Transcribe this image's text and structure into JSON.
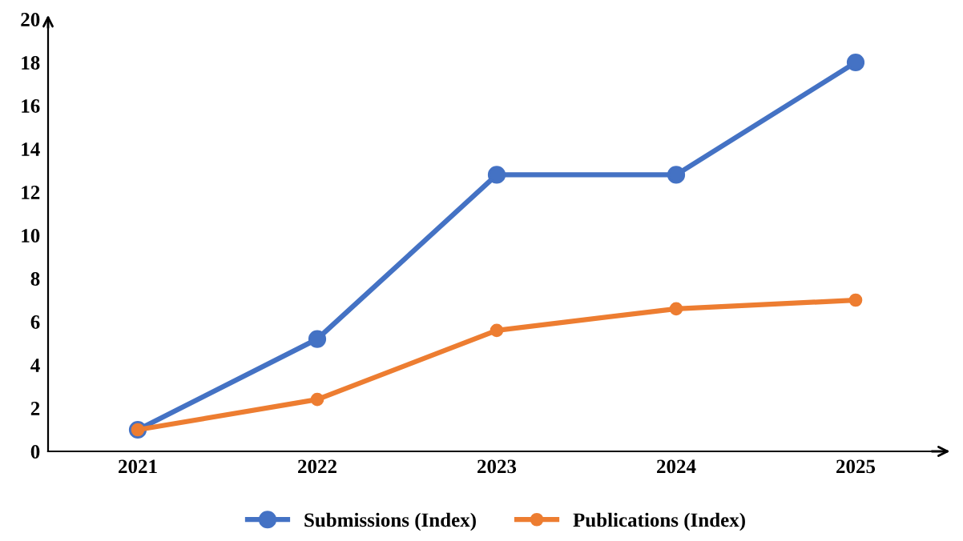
{
  "chart_data": {
    "type": "line",
    "categories": [
      "2021",
      "2022",
      "2023",
      "2024",
      "2025"
    ],
    "series": [
      {
        "name": "Submissions (Index)",
        "color": "#4472c4",
        "values": [
          1,
          5.2,
          12.8,
          12.8,
          18
        ]
      },
      {
        "name": "Publications (Index)",
        "color": "#ed7d31",
        "values": [
          1,
          2.4,
          5.6,
          6.6,
          7
        ]
      }
    ],
    "ylim": [
      0,
      20
    ],
    "yticks": [
      0,
      2,
      4,
      6,
      8,
      10,
      12,
      14,
      16,
      18,
      20
    ],
    "grid": false,
    "legend": "bottom",
    "marker": "circle",
    "line_style": "solid"
  }
}
